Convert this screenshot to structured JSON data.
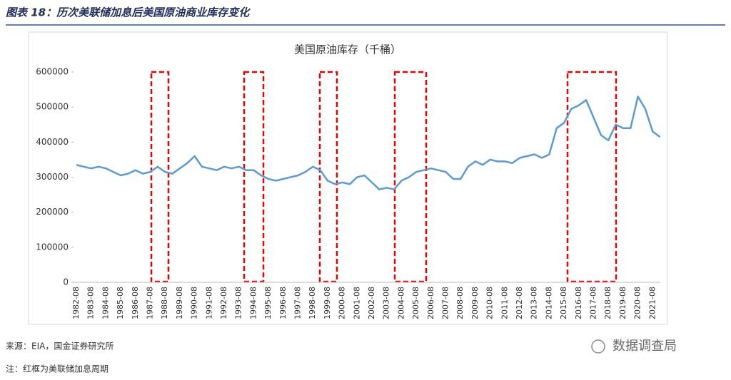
{
  "header": {
    "title": "图表 18：历次美联储加息后美国原油商业库存变化"
  },
  "chart_data": {
    "type": "line",
    "title": "美国原油库存（千桶）",
    "categories": [
      "1982-08",
      null,
      "1983-08",
      null,
      "1984-08",
      null,
      "1985-08",
      null,
      "1986-08",
      null,
      "1987-08",
      null,
      "1988-08",
      null,
      "1989-08",
      null,
      "1990-08",
      null,
      "1991-08",
      null,
      "1992-08",
      null,
      "1993-08",
      null,
      "1994-08",
      null,
      "1995-08",
      null,
      "1996-08",
      null,
      "1997-08",
      null,
      "1998-08",
      null,
      "1999-08",
      null,
      "2000-08",
      null,
      "2001-08",
      null,
      "2002-08",
      null,
      "2003-08",
      null,
      "2004-08",
      null,
      "2005-08",
      null,
      "2006-08",
      null,
      "2007-08",
      null,
      "2008-08",
      null,
      "2009-08",
      null,
      "2010-08",
      null,
      "2011-08",
      null,
      "2012-08",
      null,
      "2013-08",
      null,
      "2014-08",
      null,
      "2015-08",
      null,
      "2016-08",
      null,
      "2017-08",
      null,
      "2018-08",
      null,
      "2019-08",
      null,
      "2020-08",
      null,
      "2021-08",
      null
    ],
    "values": [
      335000,
      330000,
      325000,
      330000,
      325000,
      315000,
      305000,
      310000,
      320000,
      310000,
      315000,
      330000,
      315000,
      310000,
      325000,
      340000,
      360000,
      330000,
      325000,
      320000,
      330000,
      325000,
      330000,
      320000,
      320000,
      305000,
      295000,
      290000,
      295000,
      300000,
      305000,
      315000,
      330000,
      320000,
      290000,
      280000,
      285000,
      280000,
      300000,
      305000,
      285000,
      265000,
      270000,
      265000,
      290000,
      300000,
      315000,
      320000,
      325000,
      320000,
      315000,
      295000,
      295000,
      330000,
      345000,
      335000,
      350000,
      345000,
      345000,
      340000,
      355000,
      360000,
      365000,
      355000,
      365000,
      440000,
      455000,
      495000,
      505000,
      520000,
      470000,
      420000,
      405000,
      450000,
      440000,
      440000,
      530000,
      495000,
      430000,
      415000
    ],
    "color": "#5b9bd5",
    "ylim": [
      0,
      600000
    ],
    "yticks": [
      0,
      100000,
      200000,
      300000,
      400000,
      500000,
      600000
    ]
  },
  "footer": {
    "source": "来源：EIA，国金证券研究所",
    "note": "注：红框为美联储加息周期",
    "watermark": "数据调查局"
  }
}
